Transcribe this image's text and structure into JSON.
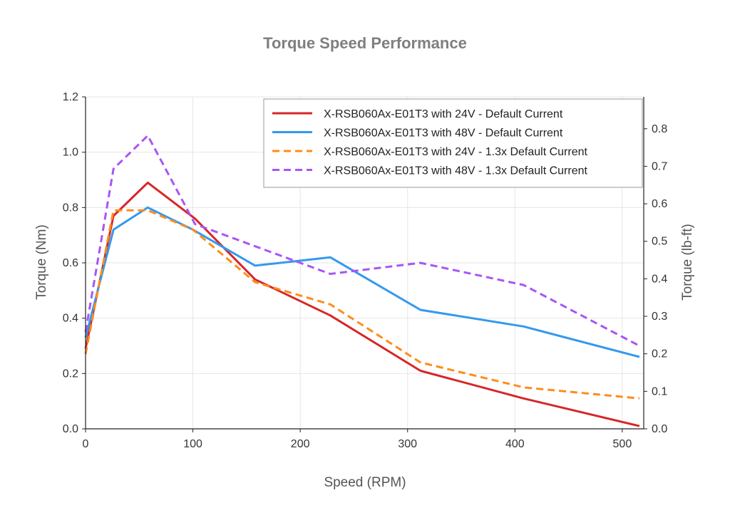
{
  "chart_data": {
    "type": "line",
    "title": "Torque Speed Performance",
    "xlabel": "Speed (RPM)",
    "ylabel": "Torque (Nm)",
    "ylabel_right": "Torque (lb-ft)",
    "xlim": [
      0,
      520
    ],
    "ylim": [
      0,
      1.2
    ],
    "ylim_right": [
      0,
      0.885
    ],
    "x_ticks": [
      0,
      100,
      200,
      300,
      400,
      500
    ],
    "y_ticks": [
      0.0,
      0.2,
      0.4,
      0.6,
      0.8,
      1.0,
      1.2
    ],
    "y_right_ticks": [
      0.0,
      0.1,
      0.2,
      0.3,
      0.4,
      0.5,
      0.6,
      0.7,
      0.8
    ],
    "grid": true,
    "legend_position": "top-right",
    "series": [
      {
        "name": "X-RSB060Ax-E01T3 with 24V - Default Current",
        "color": "#d62728",
        "dash": "solid",
        "points": [
          [
            0,
            0.29
          ],
          [
            26,
            0.77
          ],
          [
            58,
            0.89
          ],
          [
            102,
            0.76
          ],
          [
            158,
            0.54
          ],
          [
            228,
            0.41
          ],
          [
            312,
            0.21
          ],
          [
            408,
            0.11
          ],
          [
            516,
            0.01
          ]
        ]
      },
      {
        "name": "X-RSB060Ax-E01T3 with 48V - Default Current",
        "color": "#3399ee",
        "dash": "solid",
        "points": [
          [
            0,
            0.33
          ],
          [
            26,
            0.72
          ],
          [
            58,
            0.8
          ],
          [
            100,
            0.72
          ],
          [
            158,
            0.59
          ],
          [
            228,
            0.62
          ],
          [
            312,
            0.43
          ],
          [
            408,
            0.37
          ],
          [
            516,
            0.26
          ]
        ]
      },
      {
        "name": "X-RSB060Ax-E01T3 with 24V - 1.3x Default Current",
        "color": "#ff8c1a",
        "dash": "dashed",
        "points": [
          [
            0,
            0.27
          ],
          [
            26,
            0.79
          ],
          [
            58,
            0.79
          ],
          [
            100,
            0.72
          ],
          [
            158,
            0.53
          ],
          [
            228,
            0.45
          ],
          [
            312,
            0.24
          ],
          [
            408,
            0.15
          ],
          [
            516,
            0.11
          ]
        ]
      },
      {
        "name": "X-RSB060Ax-E01T3 with 48V - 1.3x Default Current",
        "color": "#a855f7",
        "dash": "dashed",
        "points": [
          [
            0,
            0.35
          ],
          [
            26,
            0.94
          ],
          [
            58,
            1.06
          ],
          [
            102,
            0.74
          ],
          [
            158,
            0.66
          ],
          [
            228,
            0.56
          ],
          [
            312,
            0.6
          ],
          [
            408,
            0.52
          ],
          [
            516,
            0.3
          ]
        ]
      }
    ]
  }
}
